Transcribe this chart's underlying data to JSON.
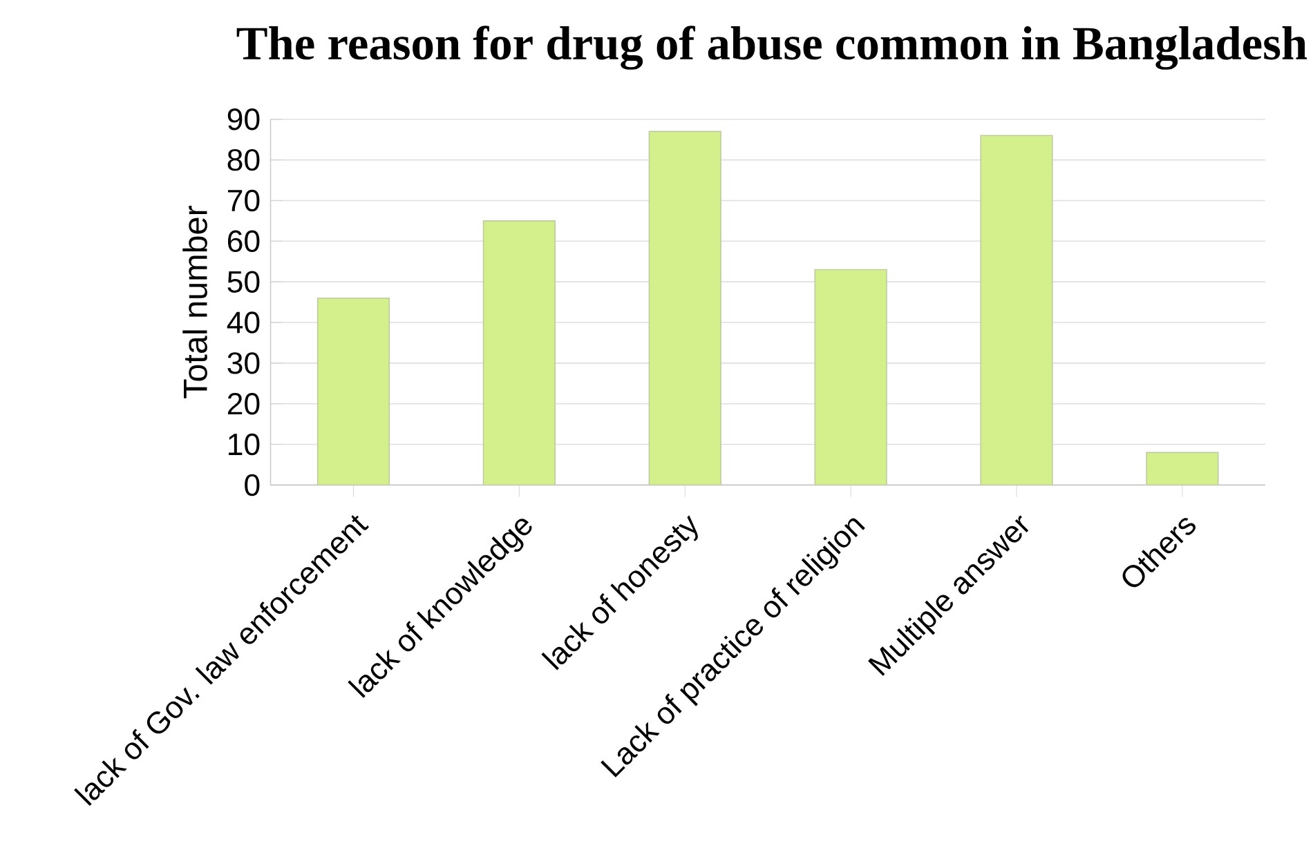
{
  "chart_data": {
    "type": "bar",
    "title": "The reason for drug of abuse common in Bangladesh",
    "ylabel": "Total number",
    "categories": [
      "lack of Gov. law enforcement",
      "lack of knowledge",
      "lack of honesty",
      "Lack of practice of religion",
      "Multiple answer",
      "Others"
    ],
    "values": [
      46,
      65,
      87,
      53,
      86,
      8
    ],
    "color": "#d4f08c",
    "ylim": [
      0,
      90
    ],
    "yticks": [
      0,
      10,
      20,
      30,
      40,
      50,
      60,
      70,
      80,
      90
    ],
    "grid": "y"
  }
}
